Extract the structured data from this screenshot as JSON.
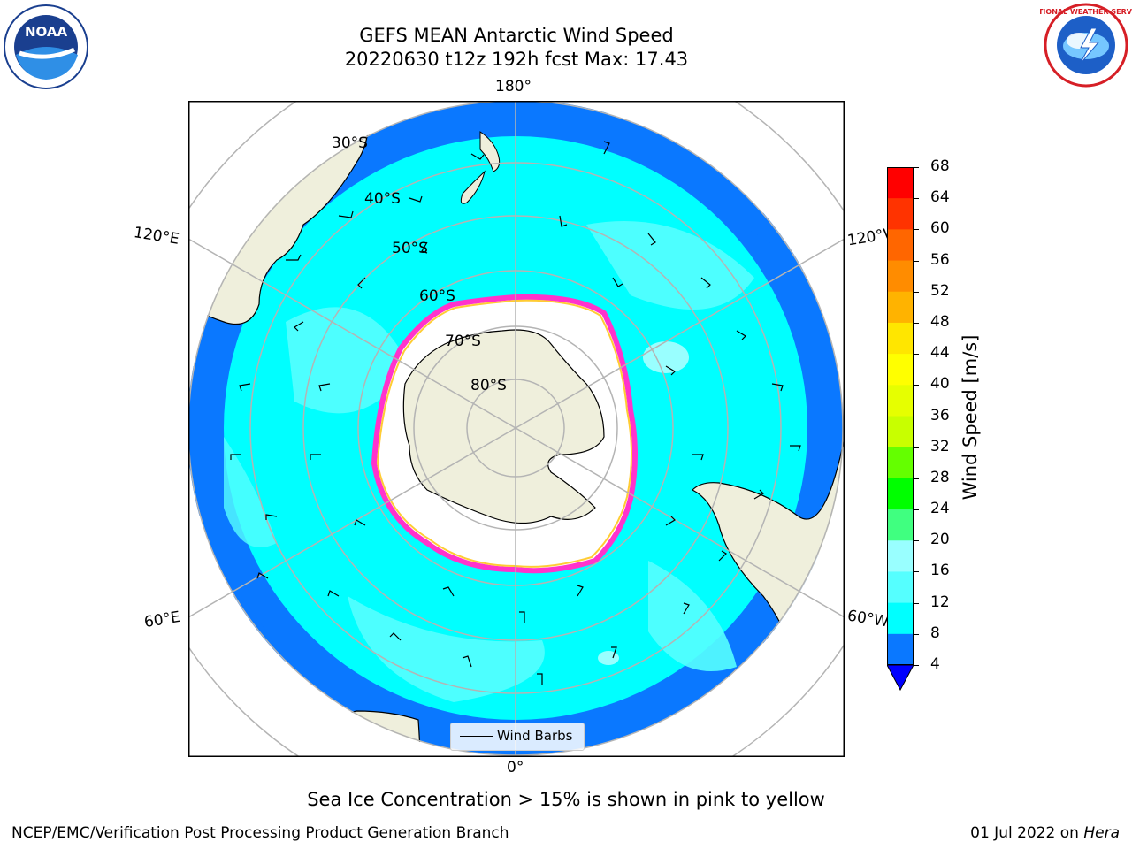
{
  "header": {
    "title_line1": "GEFS MEAN Antarctic Wind Speed",
    "title_line2": "20220630 t12z 192h fcst   Max: 17.43"
  },
  "logos": {
    "left": {
      "icon": "noaa-logo",
      "text": "NOAA"
    },
    "right": {
      "icon": "nws-logo",
      "text": "NATIONAL WEATHER SERVICE"
    }
  },
  "map": {
    "longitude_labels": [
      "180°",
      "120°E",
      "120°W",
      "60°E",
      "60°W",
      "0°"
    ],
    "latitude_labels": [
      "30°S",
      "40°S",
      "50°S",
      "60°S",
      "70°S",
      "80°S"
    ],
    "legend": {
      "label": "Wind Barbs"
    },
    "colors": {
      "land": "#efefdc",
      "ice": "#ffffff",
      "ice_edge": "#ff33cc",
      "ice_edge_inner": "#ffcc33",
      "speed_4_8": "#0a78ff",
      "speed_8_12": "#00ffff",
      "speed_12_16": "#55ffff",
      "speed_16_20": "#99ffff"
    }
  },
  "colorbar": {
    "label": "Wind Speed [m/s]",
    "ticks": [
      "68",
      "64",
      "60",
      "56",
      "52",
      "48",
      "44",
      "40",
      "36",
      "32",
      "28",
      "24",
      "20",
      "16",
      "12",
      "8",
      "4"
    ],
    "colors": [
      "#ff0000",
      "#ff3300",
      "#ff6600",
      "#ff8c00",
      "#ffb300",
      "#ffe600",
      "#ffff00",
      "#e6ff00",
      "#c8ff00",
      "#64ff00",
      "#00ff00",
      "#40ff80",
      "#99ffff",
      "#55ffff",
      "#00ffff",
      "#0a78ff"
    ],
    "extend_color": "#0000ff"
  },
  "caption": "Sea Ice Concentration > 15% is shown in pink to yellow",
  "footer": {
    "left": "NCEP/EMC/Verification Post Processing Product Generation Branch",
    "date": "01 Jul 2022 on",
    "machine": "Hera"
  }
}
